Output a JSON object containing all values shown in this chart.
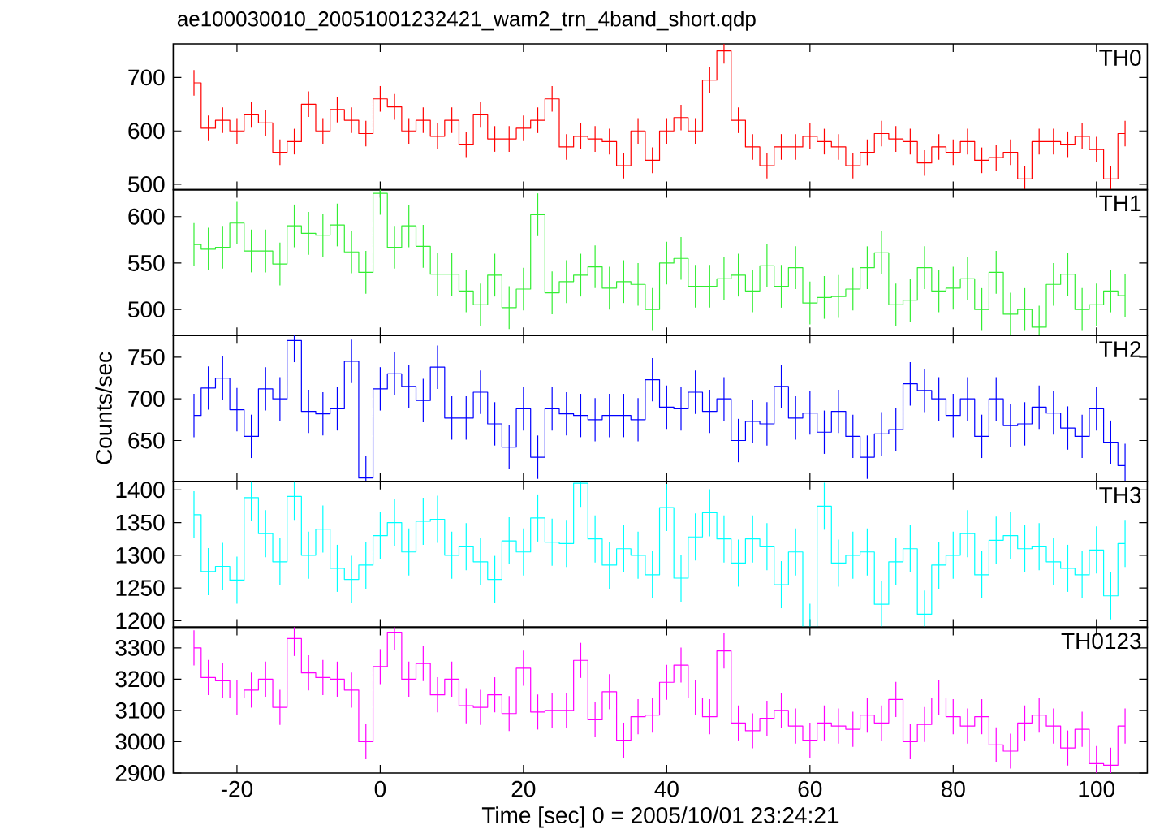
{
  "chart_data": [
    {
      "type": "step",
      "title": "ae100030010_20051001232421_wam2_trn_4band_short.qdp",
      "x": [
        -26,
        -24,
        -22,
        -20,
        -18,
        -16,
        -14,
        -12,
        -10,
        -8,
        -6,
        -4,
        -2,
        0,
        2,
        4,
        6,
        8,
        10,
        12,
        14,
        16,
        18,
        20,
        22,
        24,
        26,
        28,
        30,
        32,
        34,
        36,
        38,
        40,
        42,
        44,
        46,
        48,
        50,
        52,
        54,
        56,
        58,
        60,
        62,
        64,
        66,
        68,
        70,
        72,
        74,
        76,
        78,
        80,
        82,
        84,
        86,
        88,
        90,
        92,
        94,
        96,
        98,
        100,
        102,
        104
      ],
      "xlim": [
        -28.9,
        107.1
      ],
      "xticks": [
        -20,
        0,
        20,
        40,
        60,
        80,
        100
      ],
      "ylim": [
        490,
        763
      ],
      "yticks": [
        500,
        600,
        700
      ],
      "tick_labels": "y",
      "series": [
        {
          "name": "TH0",
          "color": "#ff0000",
          "values": [
            690,
            605,
            620,
            600,
            630,
            615,
            560,
            580,
            650,
            600,
            640,
            620,
            595,
            660,
            645,
            600,
            620,
            590,
            620,
            575,
            630,
            585,
            585,
            605,
            620,
            660,
            570,
            590,
            585,
            580,
            535,
            600,
            545,
            600,
            625,
            600,
            695,
            750,
            620,
            570,
            535,
            570,
            570,
            590,
            580,
            570,
            535,
            560,
            595,
            585,
            580,
            540,
            570,
            560,
            580,
            545,
            550,
            560,
            510,
            580,
            580,
            575,
            590,
            565,
            510,
            595
          ],
          "errors": [
            24,
            24,
            24,
            24,
            24,
            24,
            24,
            24,
            24,
            24,
            24,
            24,
            24,
            24,
            24,
            24,
            24,
            24,
            24,
            24,
            24,
            24,
            24,
            24,
            24,
            24,
            24,
            24,
            24,
            24,
            24,
            24,
            24,
            24,
            24,
            24,
            24,
            [
              726,
              763
            ],
            24,
            24,
            24,
            24,
            24,
            24,
            24,
            24,
            24,
            24,
            24,
            24,
            24,
            24,
            24,
            24,
            24,
            24,
            24,
            24,
            [
              490,
              534
            ],
            24,
            24,
            24,
            24,
            24,
            [
              490,
              534
            ],
            24
          ]
        }
      ]
    },
    {
      "type": "step",
      "x": [
        -26,
        -24,
        -22,
        -20,
        -18,
        -16,
        -14,
        -12,
        -10,
        -8,
        -6,
        -4,
        -2,
        0,
        2,
        4,
        6,
        8,
        10,
        12,
        14,
        16,
        18,
        20,
        22,
        24,
        26,
        28,
        30,
        32,
        34,
        36,
        38,
        40,
        42,
        44,
        46,
        48,
        50,
        52,
        54,
        56,
        58,
        60,
        62,
        64,
        66,
        68,
        70,
        72,
        74,
        76,
        78,
        80,
        82,
        84,
        86,
        88,
        90,
        92,
        94,
        96,
        98,
        100,
        102,
        104
      ],
      "xlim": [
        -28.9,
        107.1
      ],
      "xticks": [
        -20,
        0,
        20,
        40,
        60,
        80,
        100
      ],
      "ylim": [
        472,
        629
      ],
      "yticks": [
        500,
        550,
        600
      ],
      "tick_labels": "y",
      "series": [
        {
          "name": "TH1",
          "color": "#33ee33",
          "values": [
            570,
            565,
            567,
            593,
            563,
            563,
            549,
            590,
            582,
            580,
            591,
            562,
            540,
            625,
            567,
            590,
            568,
            538,
            538,
            520,
            505,
            537,
            502,
            522,
            602,
            518,
            530,
            537,
            546,
            523,
            530,
            527,
            500,
            550,
            555,
            525,
            525,
            533,
            537,
            520,
            547,
            525,
            545,
            507,
            513,
            514,
            522,
            545,
            561,
            505,
            510,
            545,
            520,
            523,
            533,
            500,
            540,
            495,
            500,
            481,
            527,
            538,
            500,
            505,
            520,
            515
          ],
          "errors": [
            23,
            23,
            23,
            23,
            23,
            23,
            23,
            23,
            23,
            23,
            23,
            23,
            23,
            [
              602,
              629
            ],
            23,
            23,
            23,
            23,
            23,
            23,
            23,
            23,
            23,
            23,
            23,
            23,
            23,
            23,
            23,
            23,
            23,
            23,
            23,
            23,
            23,
            23,
            23,
            23,
            23,
            23,
            23,
            23,
            23,
            23,
            23,
            23,
            23,
            23,
            23,
            23,
            23,
            23,
            23,
            23,
            23,
            23,
            23,
            23,
            23,
            [
              472,
              504
            ],
            23,
            23,
            23,
            23,
            23,
            23
          ]
        }
      ]
    },
    {
      "type": "step",
      "ylabel": "Counts/sec",
      "x": [
        -26,
        -24,
        -22,
        -20,
        -18,
        -16,
        -14,
        -12,
        -10,
        -8,
        -6,
        -4,
        -2,
        0,
        2,
        4,
        6,
        8,
        10,
        12,
        14,
        16,
        18,
        20,
        22,
        24,
        26,
        28,
        30,
        32,
        34,
        36,
        38,
        40,
        42,
        44,
        46,
        48,
        50,
        52,
        54,
        56,
        58,
        60,
        62,
        64,
        66,
        68,
        70,
        72,
        74,
        76,
        78,
        80,
        82,
        84,
        86,
        88,
        90,
        92,
        94,
        96,
        98,
        100,
        102,
        104
      ],
      "xlim": [
        -28.9,
        107.1
      ],
      "xticks": [
        -20,
        0,
        20,
        40,
        60,
        80,
        100
      ],
      "ylim": [
        601,
        776
      ],
      "yticks": [
        650,
        700,
        750
      ],
      "tick_labels": "y",
      "series": [
        {
          "name": "TH2",
          "color": "#0000ff",
          "values": [
            680,
            713,
            725,
            687,
            655,
            712,
            700,
            770,
            685,
            682,
            688,
            745,
            605,
            712,
            730,
            715,
            698,
            738,
            677,
            677,
            708,
            670,
            642,
            688,
            630,
            688,
            682,
            680,
            675,
            680,
            680,
            675,
            723,
            690,
            688,
            708,
            685,
            700,
            650,
            673,
            670,
            715,
            677,
            683,
            660,
            685,
            655,
            630,
            658,
            663,
            718,
            710,
            700,
            680,
            700,
            655,
            700,
            668,
            670,
            690,
            683,
            665,
            655,
            688,
            648,
            620
          ],
          "errors": [
            26,
            26,
            26,
            26,
            26,
            26,
            26,
            [
              744,
              776
            ],
            26,
            26,
            26,
            26,
            [
              601,
              631
            ],
            26,
            26,
            26,
            26,
            26,
            26,
            26,
            26,
            26,
            26,
            26,
            26,
            26,
            26,
            26,
            26,
            26,
            26,
            26,
            26,
            26,
            26,
            26,
            26,
            26,
            26,
            26,
            26,
            26,
            26,
            26,
            26,
            26,
            26,
            26,
            26,
            26,
            26,
            26,
            26,
            26,
            26,
            26,
            26,
            26,
            26,
            26,
            26,
            26,
            26,
            26,
            26,
            [
              601,
              646
            ]
          ]
        }
      ]
    },
    {
      "type": "step",
      "x": [
        -26,
        -24,
        -22,
        -20,
        -18,
        -16,
        -14,
        -12,
        -10,
        -8,
        -6,
        -4,
        -2,
        0,
        2,
        4,
        6,
        8,
        10,
        12,
        14,
        16,
        18,
        20,
        22,
        24,
        26,
        28,
        30,
        32,
        34,
        36,
        38,
        40,
        42,
        44,
        46,
        48,
        50,
        52,
        54,
        56,
        58,
        60,
        62,
        64,
        66,
        68,
        70,
        72,
        74,
        76,
        78,
        80,
        82,
        84,
        86,
        88,
        90,
        92,
        94,
        96,
        98,
        100,
        102,
        104
      ],
      "xlim": [
        -28.9,
        107.1
      ],
      "xticks": [
        -20,
        0,
        20,
        40,
        60,
        80,
        100
      ],
      "ylim": [
        1190,
        1413
      ],
      "yticks": [
        1200,
        1250,
        1300,
        1350,
        1400
      ],
      "tick_labels": "y",
      "series": [
        {
          "name": "TH3",
          "color": "#00ffff",
          "values": [
            1362,
            1275,
            1283,
            1262,
            1388,
            1333,
            1290,
            1390,
            1300,
            1340,
            1280,
            1263,
            1285,
            1330,
            1350,
            1305,
            1352,
            1355,
            1300,
            1313,
            1290,
            1263,
            1322,
            1305,
            1357,
            1320,
            1318,
            1410,
            1325,
            1285,
            1310,
            1300,
            1270,
            1373,
            1265,
            1328,
            1365,
            1325,
            1288,
            1325,
            1313,
            1255,
            1305,
            1190,
            1375,
            1288,
            1300,
            1305,
            1225,
            1290,
            1310,
            1210,
            1285,
            1300,
            1333,
            1270,
            1323,
            1330,
            1310,
            1313,
            1290,
            1280,
            1270,
            1308,
            1238,
            1318
          ],
          "errors": [
            36,
            36,
            36,
            36,
            [
              1352,
              1413
            ],
            36,
            36,
            [
              1354,
              1413
            ],
            36,
            36,
            36,
            36,
            36,
            36,
            36,
            36,
            36,
            36,
            36,
            36,
            36,
            36,
            36,
            36,
            36,
            36,
            36,
            [
              1374,
              1413
            ],
            36,
            36,
            36,
            36,
            36,
            36,
            36,
            36,
            36,
            36,
            36,
            36,
            36,
            36,
            36,
            [
              1190,
              1226
            ],
            36,
            36,
            36,
            36,
            [
              1190,
              1261
            ],
            36,
            36,
            [
              1190,
              1246
            ],
            36,
            36,
            36,
            36,
            36,
            36,
            36,
            36,
            36,
            36,
            36,
            36,
            36,
            36
          ]
        }
      ]
    },
    {
      "type": "step",
      "xlabel": "Time [sec] 0 = 2005/10/01 23:24:21",
      "x": [
        -26,
        -24,
        -22,
        -20,
        -18,
        -16,
        -14,
        -12,
        -10,
        -8,
        -6,
        -4,
        -2,
        0,
        2,
        4,
        6,
        8,
        10,
        12,
        14,
        16,
        18,
        20,
        22,
        24,
        26,
        28,
        30,
        32,
        34,
        36,
        38,
        40,
        42,
        44,
        46,
        48,
        50,
        52,
        54,
        56,
        58,
        60,
        62,
        64,
        66,
        68,
        70,
        72,
        74,
        76,
        78,
        80,
        82,
        84,
        86,
        88,
        90,
        92,
        94,
        96,
        98,
        100,
        102,
        104
      ],
      "xlim": [
        -28.9,
        107.1
      ],
      "xticks": [
        -20,
        0,
        20,
        40,
        60,
        80,
        100
      ],
      "ylim": [
        2900,
        3366
      ],
      "yticks": [
        2900,
        3000,
        3100,
        3200,
        3300
      ],
      "series": [
        {
          "name": "TH0123",
          "color": "#ff00ff",
          "values": [
            3300,
            3205,
            3195,
            3140,
            3165,
            3200,
            3110,
            3330,
            3220,
            3205,
            3200,
            3165,
            3000,
            3240,
            3350,
            3200,
            3250,
            3150,
            3200,
            3115,
            3110,
            3150,
            3090,
            3235,
            3095,
            3100,
            3100,
            3260,
            3070,
            3160,
            3005,
            3080,
            3085,
            3190,
            3245,
            3140,
            3080,
            3290,
            3060,
            3035,
            3075,
            3100,
            3050,
            3005,
            3060,
            3050,
            3040,
            3085,
            3060,
            3135,
            3000,
            3055,
            3140,
            3080,
            3050,
            3080,
            2990,
            2970,
            3060,
            3085,
            3050,
            2980,
            3040,
            2930,
            2925,
            3050
          ],
          "errors": [
            56,
            56,
            56,
            56,
            56,
            56,
            56,
            [
              3274,
              3366
            ],
            56,
            56,
            56,
            56,
            56,
            56,
            [
              3294,
              3366
            ],
            56,
            56,
            56,
            56,
            56,
            56,
            56,
            56,
            56,
            56,
            56,
            56,
            56,
            56,
            56,
            56,
            56,
            56,
            56,
            56,
            56,
            56,
            56,
            56,
            56,
            56,
            56,
            56,
            56,
            56,
            56,
            56,
            56,
            56,
            56,
            56,
            56,
            56,
            56,
            56,
            56,
            56,
            56,
            56,
            56,
            56,
            56,
            56,
            [
              2900,
              2986
            ],
            [
              2900,
              2981
            ],
            56
          ]
        }
      ]
    }
  ]
}
